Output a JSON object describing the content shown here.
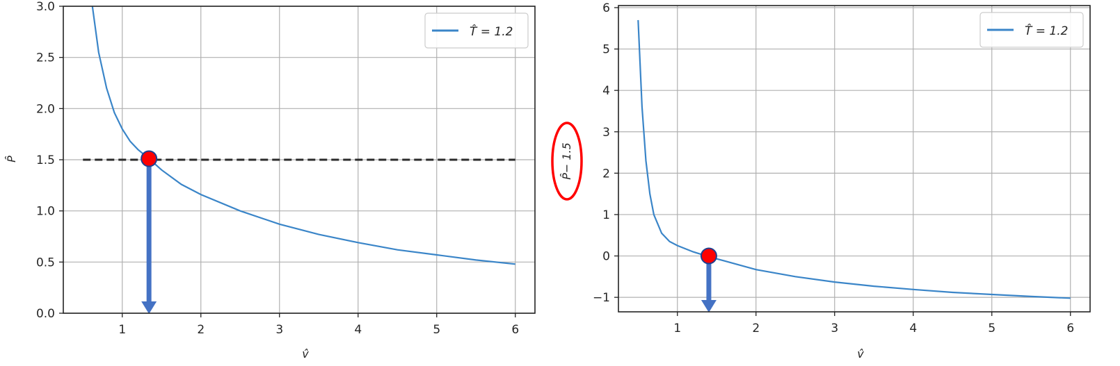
{
  "chart_data": [
    {
      "type": "line",
      "title": "",
      "xlabel": "v̂",
      "ylabel": "P̂",
      "xlim": [
        0.25,
        6.25
      ],
      "ylim": [
        0.0,
        3.0
      ],
      "xticks": [
        1,
        2,
        3,
        4,
        5,
        6
      ],
      "yticks": [
        0.0,
        0.5,
        1.0,
        1.5,
        2.0,
        2.5,
        3.0
      ],
      "xtick_labels": [
        "1",
        "2",
        "3",
        "4",
        "5",
        "6"
      ],
      "ytick_labels": [
        "0.0",
        "0.5",
        "1.0",
        "1.5",
        "2.0",
        "2.5",
        "3.0"
      ],
      "grid": true,
      "legend_position": "top-right",
      "series": [
        {
          "name": "T̂ = 1.2",
          "color": "#3a85c8",
          "x": [
            0.62,
            0.7,
            0.8,
            0.9,
            1.0,
            1.1,
            1.2,
            1.34,
            1.5,
            1.75,
            2.0,
            2.5,
            3.0,
            3.5,
            4.0,
            4.5,
            5.0,
            5.5,
            6.0
          ],
          "y": [
            3.0,
            2.55,
            2.2,
            1.96,
            1.8,
            1.68,
            1.6,
            1.51,
            1.4,
            1.26,
            1.16,
            1.0,
            0.87,
            0.77,
            0.69,
            0.62,
            0.57,
            0.52,
            0.48
          ]
        }
      ],
      "reference_line": {
        "y": 1.5,
        "x_range": [
          0.5,
          6.0
        ],
        "style": "dashed",
        "color": "#2b2b2b"
      },
      "marker": {
        "x": 1.34,
        "y": 1.51,
        "color": "#ff0000"
      },
      "arrow": {
        "x": 1.34,
        "from_y": 1.5,
        "to_y": 0.0,
        "color": "#4472c4"
      }
    },
    {
      "type": "line",
      "title": "",
      "xlabel": "v̂",
      "ylabel": "P̂− 1.5",
      "ylabel_highlight_color": "#ff0000",
      "xlim": [
        0.25,
        6.25
      ],
      "ylim": [
        -1.35,
        6.05
      ],
      "xticks": [
        1,
        2,
        3,
        4,
        5,
        6
      ],
      "yticks": [
        -1,
        0,
        1,
        2,
        3,
        4,
        5,
        6
      ],
      "xtick_labels": [
        "1",
        "2",
        "3",
        "4",
        "5",
        "6"
      ],
      "ytick_labels": [
        "−1",
        "0",
        "1",
        "2",
        "3",
        "4",
        "5",
        "6"
      ],
      "grid": true,
      "legend_position": "top-right",
      "series": [
        {
          "name": "T̂ = 1.2",
          "color": "#3a85c8",
          "x": [
            0.5,
            0.55,
            0.6,
            0.65,
            0.7,
            0.8,
            0.9,
            1.0,
            1.2,
            1.4,
            1.6,
            2.0,
            2.5,
            3.0,
            3.5,
            4.0,
            4.5,
            5.0,
            5.5,
            6.0
          ],
          "y": [
            5.7,
            3.6,
            2.3,
            1.5,
            1.0,
            0.55,
            0.35,
            0.25,
            0.1,
            -0.02,
            -0.12,
            -0.33,
            -0.5,
            -0.63,
            -0.73,
            -0.81,
            -0.88,
            -0.93,
            -0.98,
            -1.02
          ]
        }
      ],
      "marker": {
        "x": 1.4,
        "y": 0.0,
        "color": "#ff0000"
      },
      "arrow": {
        "x": 1.4,
        "from_y": 0.0,
        "to_y": -1.35,
        "color": "#4472c4"
      }
    }
  ]
}
